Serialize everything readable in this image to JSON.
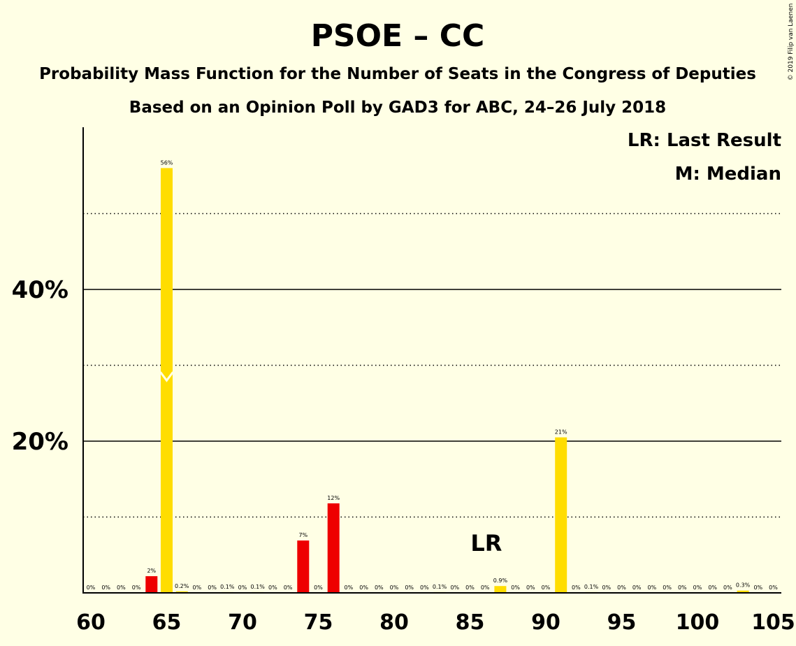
{
  "chart_data": {
    "type": "bar",
    "title": "PSOE – CC",
    "subtitle": "Probability Mass Function for the Number of Seats in the Congress of Deputies",
    "subtitle2": "Based on an Opinion Poll by GAD3 for ABC, 24–26 July 2018",
    "copyright": "© 2019 Filip van Laenen",
    "legend": [
      "LR: Last Result",
      "M: Median"
    ],
    "xlabel": "",
    "ylabel": "",
    "xlim": [
      60,
      105
    ],
    "ylim": [
      0,
      61
    ],
    "xticks": [
      "60",
      "65",
      "70",
      "75",
      "80",
      "85",
      "90",
      "95",
      "100",
      "105"
    ],
    "yticks": [
      {
        "value": 20,
        "label": "20%"
      },
      {
        "value": 40,
        "label": "40%"
      }
    ],
    "gridlines_solid": [
      20,
      40
    ],
    "gridlines_dotted": [
      10,
      30,
      50
    ],
    "last_result": {
      "seat": 87,
      "label": "LR"
    },
    "median": {
      "seat": 65,
      "value": 28
    },
    "colors": {
      "background": "#FFFFE5",
      "in_range": "#FFDD00",
      "outside": "#EE0000",
      "axis": "#000000"
    },
    "bars": [
      {
        "seat": 60,
        "value": 0,
        "label": "0%",
        "color": "#FFDD00"
      },
      {
        "seat": 61,
        "value": 0,
        "label": "0%",
        "color": "#FFDD00"
      },
      {
        "seat": 62,
        "value": 0,
        "label": "0%",
        "color": "#FFDD00"
      },
      {
        "seat": 63,
        "value": 0,
        "label": "0%",
        "color": "#FFDD00"
      },
      {
        "seat": 64,
        "value": 2.2,
        "label": "2%",
        "color": "#EE0000"
      },
      {
        "seat": 65,
        "value": 56,
        "label": "56%",
        "color": "#FFDD00"
      },
      {
        "seat": 66,
        "value": 0.2,
        "label": "0.2%",
        "color": "#FFDD00"
      },
      {
        "seat": 67,
        "value": 0,
        "label": "0%",
        "color": "#FFDD00"
      },
      {
        "seat": 68,
        "value": 0,
        "label": "0%",
        "color": "#FFDD00"
      },
      {
        "seat": 69,
        "value": 0.1,
        "label": "0.1%",
        "color": "#FFDD00"
      },
      {
        "seat": 70,
        "value": 0,
        "label": "0%",
        "color": "#FFDD00"
      },
      {
        "seat": 71,
        "value": 0.1,
        "label": "0.1%",
        "color": "#FFDD00"
      },
      {
        "seat": 72,
        "value": 0,
        "label": "0%",
        "color": "#FFDD00"
      },
      {
        "seat": 73,
        "value": 0,
        "label": "0%",
        "color": "#FFDD00"
      },
      {
        "seat": 74,
        "value": 6.9,
        "label": "7%",
        "color": "#EE0000"
      },
      {
        "seat": 75,
        "value": 0,
        "label": "0%",
        "color": "#FFDD00"
      },
      {
        "seat": 76,
        "value": 11.8,
        "label": "12%",
        "color": "#EE0000"
      },
      {
        "seat": 77,
        "value": 0,
        "label": "0%",
        "color": "#FFDD00"
      },
      {
        "seat": 78,
        "value": 0,
        "label": "0%",
        "color": "#FFDD00"
      },
      {
        "seat": 79,
        "value": 0,
        "label": "0%",
        "color": "#FFDD00"
      },
      {
        "seat": 80,
        "value": 0,
        "label": "0%",
        "color": "#FFDD00"
      },
      {
        "seat": 81,
        "value": 0,
        "label": "0%",
        "color": "#FFDD00"
      },
      {
        "seat": 82,
        "value": 0,
        "label": "0%",
        "color": "#FFDD00"
      },
      {
        "seat": 83,
        "value": 0.1,
        "label": "0.1%",
        "color": "#FFDD00"
      },
      {
        "seat": 84,
        "value": 0,
        "label": "0%",
        "color": "#FFDD00"
      },
      {
        "seat": 85,
        "value": 0,
        "label": "0%",
        "color": "#FFDD00"
      },
      {
        "seat": 86,
        "value": 0,
        "label": "0%",
        "color": "#FFDD00"
      },
      {
        "seat": 87,
        "value": 0.9,
        "label": "0.9%",
        "color": "#FFDD00"
      },
      {
        "seat": 88,
        "value": 0,
        "label": "0%",
        "color": "#FFDD00"
      },
      {
        "seat": 89,
        "value": 0,
        "label": "0%",
        "color": "#FFDD00"
      },
      {
        "seat": 90,
        "value": 0,
        "label": "0%",
        "color": "#FFDD00"
      },
      {
        "seat": 91,
        "value": 20.5,
        "label": "21%",
        "color": "#FFDD00"
      },
      {
        "seat": 92,
        "value": 0,
        "label": "0%",
        "color": "#FFDD00"
      },
      {
        "seat": 93,
        "value": 0.1,
        "label": "0.1%",
        "color": "#FFDD00"
      },
      {
        "seat": 94,
        "value": 0,
        "label": "0%",
        "color": "#FFDD00"
      },
      {
        "seat": 95,
        "value": 0,
        "label": "0%",
        "color": "#FFDD00"
      },
      {
        "seat": 96,
        "value": 0,
        "label": "0%",
        "color": "#FFDD00"
      },
      {
        "seat": 97,
        "value": 0,
        "label": "0%",
        "color": "#FFDD00"
      },
      {
        "seat": 98,
        "value": 0,
        "label": "0%",
        "color": "#FFDD00"
      },
      {
        "seat": 99,
        "value": 0,
        "label": "0%",
        "color": "#FFDD00"
      },
      {
        "seat": 100,
        "value": 0,
        "label": "0%",
        "color": "#FFDD00"
      },
      {
        "seat": 101,
        "value": 0,
        "label": "0%",
        "color": "#FFDD00"
      },
      {
        "seat": 102,
        "value": 0,
        "label": "0%",
        "color": "#FFDD00"
      },
      {
        "seat": 103,
        "value": 0.3,
        "label": "0.3%",
        "color": "#FFDD00"
      },
      {
        "seat": 104,
        "value": 0,
        "label": "0%",
        "color": "#FFDD00"
      },
      {
        "seat": 105,
        "value": 0,
        "label": "0%",
        "color": "#FFDD00"
      }
    ]
  }
}
